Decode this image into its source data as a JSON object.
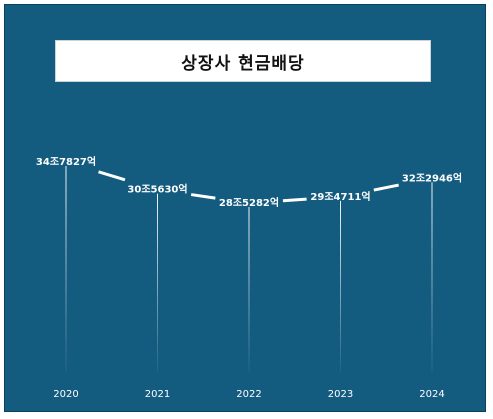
{
  "title": "상장사 현금배당",
  "colors": {
    "background": "#145b80",
    "line": "#ffffff",
    "title_box": "#ffffff",
    "title_text": "#111111"
  },
  "chart_data": {
    "type": "line",
    "title": "상장사 현금배당",
    "categories": [
      "2020",
      "2021",
      "2022",
      "2023",
      "2024"
    ],
    "values": [
      34.7827,
      30.563,
      28.5282,
      29.4711,
      32.2946
    ],
    "value_labels": [
      "34조7827억",
      "30조5630억",
      "28조5282억",
      "29조4711억",
      "32조2946억"
    ],
    "xlabel": "",
    "ylabel": "",
    "ylim": [
      0,
      40
    ],
    "grid": false,
    "legend": "none",
    "line_style": "dashed"
  }
}
